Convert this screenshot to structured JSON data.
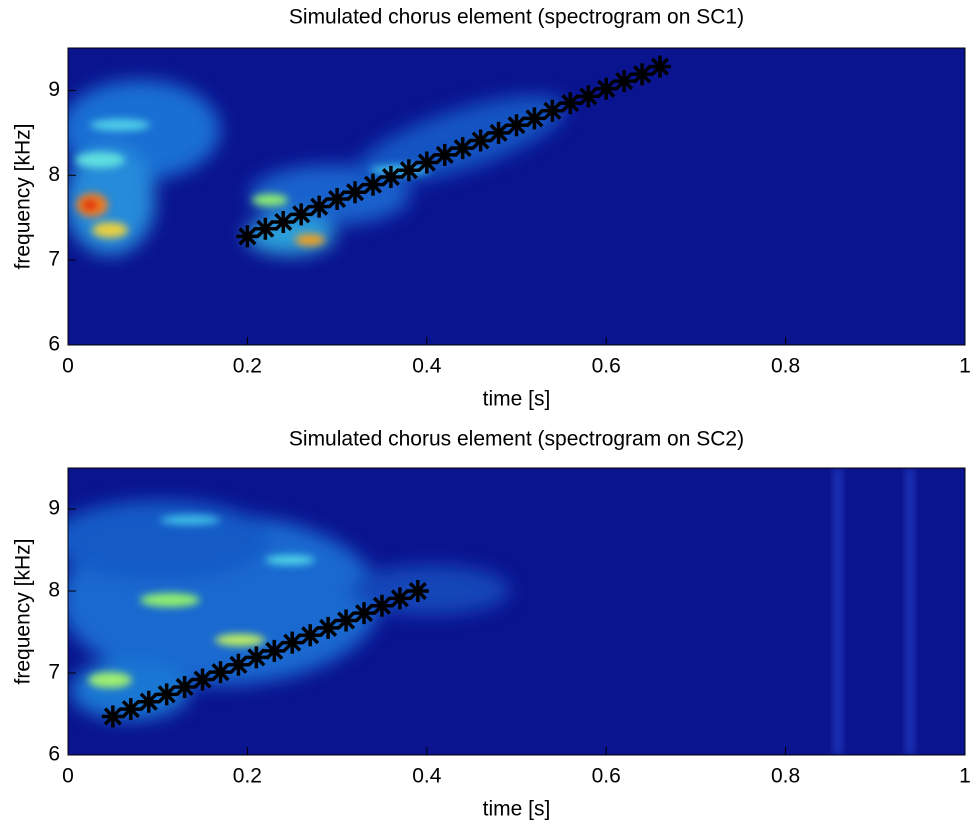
{
  "chart_data": [
    {
      "type": "scatter",
      "title": "Simulated chorus element (spectrogram on SC1)",
      "x_label": "time [s]",
      "y_label": "frequency [kHz]",
      "marker": "asterisk",
      "color": "#000000",
      "background": "#0b148f",
      "x": [
        0.2,
        0.22,
        0.24,
        0.26,
        0.28,
        0.3,
        0.32,
        0.34,
        0.36,
        0.38,
        0.4,
        0.42,
        0.44,
        0.46,
        0.48,
        0.5,
        0.52,
        0.54,
        0.56,
        0.58,
        0.6,
        0.62,
        0.64,
        0.66
      ],
      "values": [
        7.28,
        7.37,
        7.45,
        7.54,
        7.63,
        7.72,
        7.8,
        7.89,
        7.98,
        8.06,
        8.15,
        8.24,
        8.32,
        8.41,
        8.5,
        8.59,
        8.67,
        8.76,
        8.85,
        8.93,
        9.02,
        9.11,
        9.19,
        9.28
      ],
      "xlim": [
        0,
        1
      ],
      "ylim": [
        6,
        9.5
      ],
      "xticks": [
        0,
        0.2,
        0.4,
        0.6,
        0.8,
        1
      ],
      "yticks": [
        6,
        7,
        8,
        9
      ]
    },
    {
      "type": "scatter",
      "title": "Simulated chorus element (spectrogram on SC2)",
      "x_label": "time [s]",
      "y_label": "frequency [kHz]",
      "marker": "asterisk",
      "color": "#000000",
      "background": "#0b148f",
      "x": [
        0.05,
        0.07,
        0.09,
        0.11,
        0.13,
        0.15,
        0.17,
        0.19,
        0.21,
        0.23,
        0.25,
        0.27,
        0.29,
        0.31,
        0.33,
        0.35,
        0.37,
        0.39
      ],
      "values": [
        6.47,
        6.56,
        6.65,
        6.74,
        6.83,
        6.92,
        7.01,
        7.1,
        7.19,
        7.27,
        7.37,
        7.46,
        7.55,
        7.64,
        7.73,
        7.82,
        7.91,
        8.0
      ],
      "xlim": [
        0,
        1
      ],
      "ylim": [
        6,
        9.5
      ],
      "xticks": [
        0,
        0.2,
        0.4,
        0.6,
        0.8,
        1
      ],
      "yticks": [
        6,
        7,
        8,
        9
      ]
    }
  ]
}
